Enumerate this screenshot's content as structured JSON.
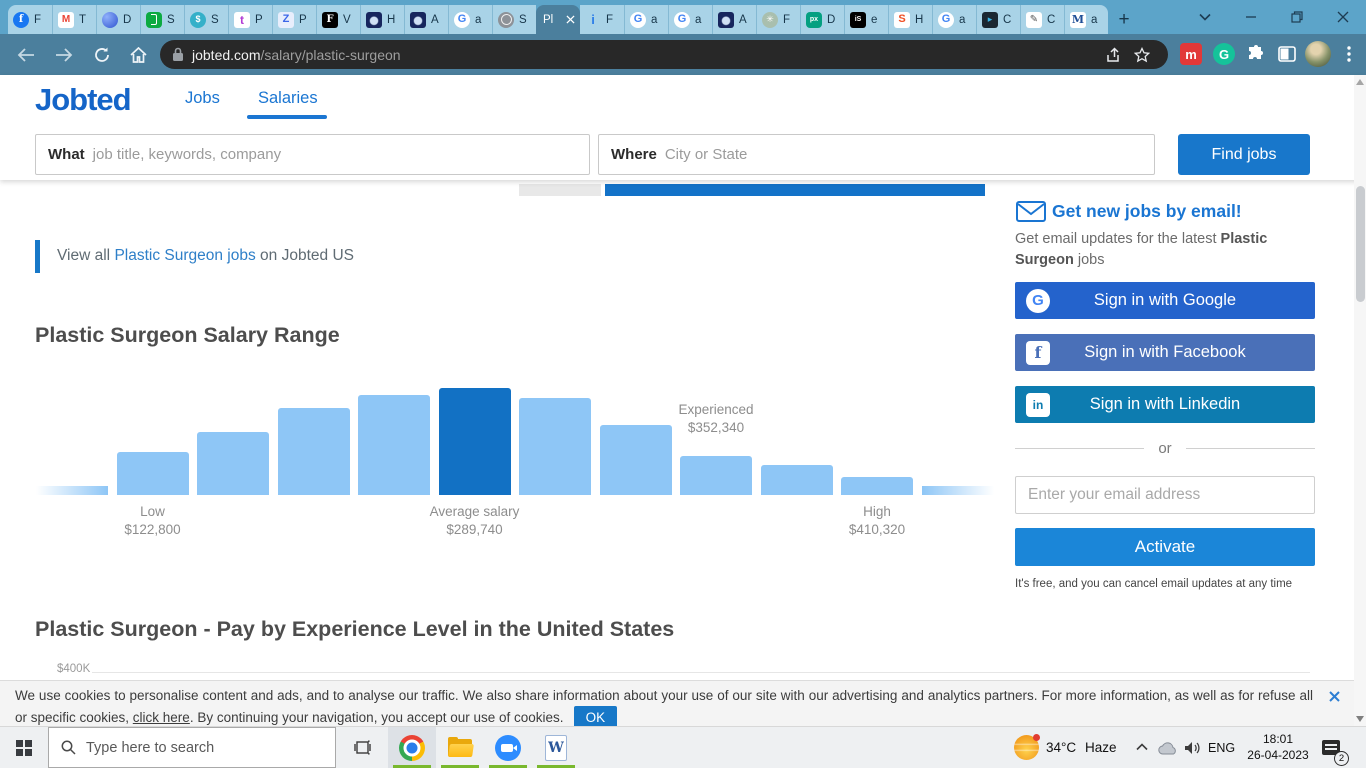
{
  "browser": {
    "address": {
      "host": "jobted.com",
      "path": "/salary/plastic-surgeon"
    },
    "tabs": [
      {
        "icon": "facebook-icon",
        "title": "F"
      },
      {
        "icon": "gmail-icon",
        "title": "T"
      },
      {
        "icon": "swirl-icon",
        "title": "D"
      },
      {
        "icon": "glassdoor-icon",
        "title": "S"
      },
      {
        "icon": "salary-bag-icon",
        "title": "S"
      },
      {
        "icon": "talent-icon",
        "title": "P"
      },
      {
        "icon": "ziprecruiter-icon",
        "title": "P"
      },
      {
        "icon": "forbes-icon",
        "title": "V"
      },
      {
        "icon": "lungs-icon",
        "title": "H"
      },
      {
        "icon": "lungs-icon",
        "title": "A"
      },
      {
        "icon": "google-icon",
        "title": "a"
      },
      {
        "icon": "globe-icon",
        "title": "S"
      },
      {
        "icon": "",
        "title": "Pl",
        "active": true
      },
      {
        "icon": "pin-icon",
        "title": "F"
      },
      {
        "icon": "google-icon",
        "title": "a"
      },
      {
        "icon": "google-icon",
        "title": "a"
      },
      {
        "icon": "lungs-icon",
        "title": "A"
      },
      {
        "icon": "spiral-icon",
        "title": "F"
      },
      {
        "icon": "pexels-icon",
        "title": "D"
      },
      {
        "icon": "istock-icon",
        "title": "e"
      },
      {
        "icon": "shutterstock-icon",
        "title": "H"
      },
      {
        "icon": "google-icon",
        "title": "a"
      },
      {
        "icon": "canva-icon",
        "title": "C"
      },
      {
        "icon": "pencil-icon",
        "title": "C"
      },
      {
        "icon": "medium-icon",
        "title": "a"
      }
    ]
  },
  "site_header": {
    "logo_text": "Jobted",
    "nav_jobs": "Jobs",
    "nav_salaries": "Salaries",
    "what_label": "What",
    "what_placeholder": "job title, keywords, company",
    "where_label": "Where",
    "where_placeholder": "City or State",
    "find_jobs_label": "Find jobs"
  },
  "content": {
    "view_all_prefix": "View all ",
    "view_all_link": "Plastic Surgeon jobs",
    "view_all_suffix": " on Jobted US",
    "salary_heading": "Plastic Surgeon Salary Range",
    "experience_heading": "Plastic Surgeon - Pay by Experience Level in the United States",
    "experience_axis_tick": "$400K"
  },
  "chart_data": [
    {
      "type": "bar",
      "title": "Plastic Surgeon Salary Range",
      "currency": "USD",
      "gridlines": false,
      "legend": false,
      "annotations": [
        {
          "bar_index": 1,
          "label": "Low",
          "value": "$122,800",
          "value_num": 122800,
          "placement": "below"
        },
        {
          "bar_index": 5,
          "label": "Average salary",
          "value": "$289,740",
          "value_num": 289740,
          "placement": "below"
        },
        {
          "bar_index": 8,
          "label": "Experienced",
          "value": "$352,340",
          "value_num": 352340,
          "placement": "above"
        },
        {
          "bar_index": 10,
          "label": "High",
          "value": "$410,320",
          "value_num": 410320,
          "placement": "below"
        }
      ],
      "bars": [
        {
          "rel_height": 0.08,
          "style": "fade-left"
        },
        {
          "rel_height": 0.4,
          "style": "light"
        },
        {
          "rel_height": 0.59,
          "style": "light"
        },
        {
          "rel_height": 0.81,
          "style": "light"
        },
        {
          "rel_height": 0.93,
          "style": "light"
        },
        {
          "rel_height": 1.0,
          "style": "dark"
        },
        {
          "rel_height": 0.91,
          "style": "light"
        },
        {
          "rel_height": 0.65,
          "style": "light"
        },
        {
          "rel_height": 0.36,
          "style": "light"
        },
        {
          "rel_height": 0.28,
          "style": "light"
        },
        {
          "rel_height": 0.17,
          "style": "light"
        },
        {
          "rel_height": 0.08,
          "style": "fade-right"
        }
      ],
      "colors": {
        "light": "#8ec6f6",
        "dark": "#1271c4"
      }
    },
    {
      "type": "line",
      "title": "Plastic Surgeon - Pay by Experience Level in the United States",
      "ylabel_ticks_visible": [
        "$400K"
      ]
    }
  ],
  "email_box": {
    "title": "Get new jobs by email!",
    "subtitle_prefix": "Get email updates for the latest ",
    "subtitle_bold": "Plastic Surgeon",
    "subtitle_suffix": " jobs",
    "signin_buttons": [
      {
        "provider": "google",
        "label": "Sign in with Google",
        "color": "#2463cc"
      },
      {
        "provider": "facebook",
        "label": "Sign in with Facebook",
        "color": "#4a70b8"
      },
      {
        "provider": "linkedin",
        "label": "Sign in with Linkedin",
        "color": "#0d7cb0"
      }
    ],
    "divider_text": "or",
    "email_placeholder": "Enter your email address",
    "activate_label": "Activate",
    "disclaimer": "It's free, and you can cancel email updates at any time"
  },
  "cookie_banner": {
    "text_before_link": "We use cookies to personalise content and ads, and to analyse our traffic. We also share information about your use of our site with our advertising and analytics partners. For more information, as well as for refuse all or specific cookies, ",
    "link_text": "click here",
    "text_after_link": ". By continuing your navigation, you accept our use of cookies.",
    "ok_label": "OK"
  },
  "taskbar": {
    "search_placeholder": "Type here to search",
    "apps": [
      {
        "name": "chrome",
        "focused": true
      },
      {
        "name": "file-explorer"
      },
      {
        "name": "zoom"
      },
      {
        "name": "word"
      }
    ],
    "tray": {
      "temperature": "34°C",
      "condition": "Haze",
      "language": "ENG",
      "time": "18:01",
      "date": "26-04-2023",
      "notification_count": "2"
    }
  },
  "colors": {
    "accent_blue": "#1778c8",
    "chart_light": "#8ec6f6",
    "chart_dark": "#1271c4"
  }
}
